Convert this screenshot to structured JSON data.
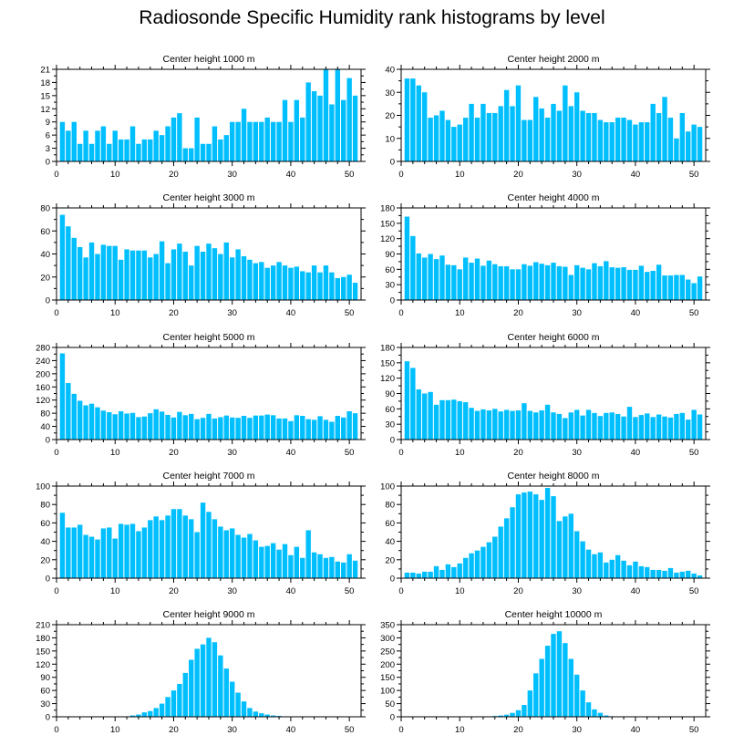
{
  "figure": {
    "title": "Radiosonde Specific Humidity rank histograms by level"
  },
  "colors": {
    "bar_fill": "#00bfff",
    "axis": "#000000",
    "background": "#ffffff"
  },
  "chart_data": [
    {
      "type": "bar",
      "title": "Center height 1000 m",
      "xlim": [
        0,
        52
      ],
      "ylim": [
        0,
        21
      ],
      "yticks": [
        0,
        3,
        6,
        9,
        12,
        15,
        18,
        21
      ],
      "xticks": [
        0,
        10,
        20,
        30,
        40,
        50
      ],
      "x": [
        1,
        2,
        3,
        4,
        5,
        6,
        7,
        8,
        9,
        10,
        11,
        12,
        13,
        14,
        15,
        16,
        17,
        18,
        19,
        20,
        21,
        22,
        23,
        24,
        25,
        26,
        27,
        28,
        29,
        30,
        31,
        32,
        33,
        34,
        35,
        36,
        37,
        38,
        39,
        40,
        41,
        42,
        43,
        44,
        45,
        46,
        47,
        48,
        49,
        50,
        51
      ],
      "values": [
        9,
        7,
        9,
        4,
        7,
        4,
        7,
        8,
        4,
        7,
        5,
        5,
        8,
        4,
        5,
        5,
        7,
        6,
        8,
        10,
        11,
        3,
        3,
        10,
        4,
        4,
        8,
        5,
        6,
        9,
        9,
        12,
        9,
        9,
        9,
        10,
        9,
        9,
        14,
        9,
        14,
        10,
        18,
        16,
        15,
        22,
        13,
        21,
        14,
        19,
        15
      ]
    },
    {
      "type": "bar",
      "title": "Center height 2000 m",
      "xlim": [
        0,
        52
      ],
      "ylim": [
        0,
        40
      ],
      "yticks": [
        0,
        10,
        20,
        30,
        40
      ],
      "xticks": [
        0,
        10,
        20,
        30,
        40,
        50
      ],
      "x": [
        1,
        2,
        3,
        4,
        5,
        6,
        7,
        8,
        9,
        10,
        11,
        12,
        13,
        14,
        15,
        16,
        17,
        18,
        19,
        20,
        21,
        22,
        23,
        24,
        25,
        26,
        27,
        28,
        29,
        30,
        31,
        32,
        33,
        34,
        35,
        36,
        37,
        38,
        39,
        40,
        41,
        42,
        43,
        44,
        45,
        46,
        47,
        48,
        49,
        50,
        51
      ],
      "values": [
        36,
        36,
        33,
        30,
        19,
        20,
        22,
        18,
        15,
        16,
        19,
        25,
        19,
        25,
        21,
        21,
        24,
        31,
        24,
        33,
        18,
        18,
        28,
        23,
        19,
        25,
        22,
        33,
        24,
        30,
        22,
        21,
        21,
        18,
        17,
        17,
        19,
        19,
        18,
        16,
        17,
        17,
        25,
        21,
        28,
        19,
        10,
        21,
        13,
        16,
        15
      ]
    },
    {
      "type": "bar",
      "title": "Center height 3000 m",
      "xlim": [
        0,
        52
      ],
      "ylim": [
        0,
        80
      ],
      "yticks": [
        0,
        20,
        40,
        60,
        80
      ],
      "xticks": [
        0,
        10,
        20,
        30,
        40,
        50
      ],
      "x": [
        1,
        2,
        3,
        4,
        5,
        6,
        7,
        8,
        9,
        10,
        11,
        12,
        13,
        14,
        15,
        16,
        17,
        18,
        19,
        20,
        21,
        22,
        23,
        24,
        25,
        26,
        27,
        28,
        29,
        30,
        31,
        32,
        33,
        34,
        35,
        36,
        37,
        38,
        39,
        40,
        41,
        42,
        43,
        44,
        45,
        46,
        47,
        48,
        49,
        50,
        51
      ],
      "values": [
        74,
        64,
        54,
        46,
        37,
        50,
        40,
        48,
        47,
        47,
        35,
        44,
        43,
        43,
        43,
        37,
        40,
        51,
        32,
        44,
        49,
        42,
        30,
        47,
        42,
        49,
        45,
        40,
        50,
        37,
        44,
        38,
        35,
        32,
        33,
        28,
        30,
        33,
        30,
        28,
        29,
        25,
        24,
        30,
        24,
        30,
        24,
        19,
        20,
        22,
        15
      ]
    },
    {
      "type": "bar",
      "title": "Center height 4000 m",
      "xlim": [
        0,
        52
      ],
      "ylim": [
        0,
        180
      ],
      "yticks": [
        0,
        30,
        60,
        90,
        120,
        150,
        180
      ],
      "xticks": [
        0,
        10,
        20,
        30,
        40,
        50
      ],
      "x": [
        1,
        2,
        3,
        4,
        5,
        6,
        7,
        8,
        9,
        10,
        11,
        12,
        13,
        14,
        15,
        16,
        17,
        18,
        19,
        20,
        21,
        22,
        23,
        24,
        25,
        26,
        27,
        28,
        29,
        30,
        31,
        32,
        33,
        34,
        35,
        36,
        37,
        38,
        39,
        40,
        41,
        42,
        43,
        44,
        45,
        46,
        47,
        48,
        49,
        50,
        51
      ],
      "values": [
        163,
        125,
        91,
        83,
        90,
        80,
        87,
        69,
        68,
        60,
        83,
        73,
        81,
        67,
        77,
        70,
        66,
        66,
        60,
        60,
        70,
        67,
        74,
        71,
        68,
        73,
        66,
        65,
        49,
        68,
        63,
        60,
        72,
        66,
        76,
        64,
        63,
        64,
        59,
        59,
        67,
        55,
        57,
        69,
        48,
        48,
        49,
        49,
        40,
        33,
        46
      ]
    },
    {
      "type": "bar",
      "title": "Center height 5000 m",
      "xlim": [
        0,
        52
      ],
      "ylim": [
        0,
        280
      ],
      "yticks": [
        0,
        40,
        80,
        120,
        160,
        200,
        240,
        280
      ],
      "xticks": [
        0,
        10,
        20,
        30,
        40,
        50
      ],
      "x": [
        1,
        2,
        3,
        4,
        5,
        6,
        7,
        8,
        9,
        10,
        11,
        12,
        13,
        14,
        15,
        16,
        17,
        18,
        19,
        20,
        21,
        22,
        23,
        24,
        25,
        26,
        27,
        28,
        29,
        30,
        31,
        32,
        33,
        34,
        35,
        36,
        37,
        38,
        39,
        40,
        41,
        42,
        43,
        44,
        45,
        46,
        47,
        48,
        49,
        50,
        51
      ],
      "values": [
        262,
        172,
        139,
        118,
        104,
        109,
        98,
        88,
        83,
        77,
        86,
        79,
        81,
        68,
        70,
        80,
        92,
        85,
        75,
        67,
        84,
        74,
        78,
        62,
        66,
        78,
        64,
        68,
        73,
        67,
        66,
        72,
        66,
        73,
        73,
        76,
        74,
        64,
        64,
        56,
        74,
        72,
        62,
        60,
        71,
        60,
        54,
        72,
        67,
        86,
        80
      ]
    },
    {
      "type": "bar",
      "title": "Center height 6000 m",
      "xlim": [
        0,
        52
      ],
      "ylim": [
        0,
        180
      ],
      "yticks": [
        0,
        30,
        60,
        90,
        120,
        150,
        180
      ],
      "xticks": [
        0,
        10,
        20,
        30,
        40,
        50
      ],
      "x": [
        1,
        2,
        3,
        4,
        5,
        6,
        7,
        8,
        9,
        10,
        11,
        12,
        13,
        14,
        15,
        16,
        17,
        18,
        19,
        20,
        21,
        22,
        23,
        24,
        25,
        26,
        27,
        28,
        29,
        30,
        31,
        32,
        33,
        34,
        35,
        36,
        37,
        38,
        39,
        40,
        41,
        42,
        43,
        44,
        45,
        46,
        47,
        48,
        49,
        50,
        51
      ],
      "values": [
        153,
        140,
        98,
        90,
        93,
        68,
        77,
        77,
        78,
        75,
        73,
        62,
        56,
        59,
        57,
        60,
        55,
        58,
        56,
        57,
        71,
        56,
        53,
        57,
        68,
        53,
        50,
        42,
        53,
        58,
        47,
        58,
        52,
        46,
        52,
        53,
        50,
        45,
        64,
        44,
        48,
        51,
        44,
        49,
        45,
        43,
        50,
        52,
        39,
        58,
        49
      ]
    },
    {
      "type": "bar",
      "title": "Center height 7000 m",
      "xlim": [
        0,
        52
      ],
      "ylim": [
        0,
        100
      ],
      "yticks": [
        0,
        20,
        40,
        60,
        80,
        100
      ],
      "xticks": [
        0,
        10,
        20,
        30,
        40,
        50
      ],
      "x": [
        1,
        2,
        3,
        4,
        5,
        6,
        7,
        8,
        9,
        10,
        11,
        12,
        13,
        14,
        15,
        16,
        17,
        18,
        19,
        20,
        21,
        22,
        23,
        24,
        25,
        26,
        27,
        28,
        29,
        30,
        31,
        32,
        33,
        34,
        35,
        36,
        37,
        38,
        39,
        40,
        41,
        42,
        43,
        44,
        45,
        46,
        47,
        48,
        49,
        50,
        51
      ],
      "values": [
        71,
        55,
        55,
        58,
        47,
        45,
        42,
        54,
        55,
        43,
        59,
        58,
        59,
        51,
        55,
        63,
        67,
        63,
        68,
        75,
        75,
        68,
        64,
        50,
        82,
        72,
        64,
        56,
        52,
        54,
        47,
        44,
        48,
        41,
        34,
        35,
        38,
        31,
        37,
        25,
        34,
        22,
        52,
        28,
        26,
        22,
        23,
        18,
        17,
        26,
        19
      ]
    },
    {
      "type": "bar",
      "title": "Center height 8000 m",
      "xlim": [
        0,
        52
      ],
      "ylim": [
        0,
        100
      ],
      "yticks": [
        0,
        20,
        40,
        60,
        80,
        100
      ],
      "xticks": [
        0,
        10,
        20,
        30,
        40,
        50
      ],
      "x": [
        1,
        2,
        3,
        4,
        5,
        6,
        7,
        8,
        9,
        10,
        11,
        12,
        13,
        14,
        15,
        16,
        17,
        18,
        19,
        20,
        21,
        22,
        23,
        24,
        25,
        26,
        27,
        28,
        29,
        30,
        31,
        32,
        33,
        34,
        35,
        36,
        37,
        38,
        39,
        40,
        41,
        42,
        43,
        44,
        45,
        46,
        47,
        48,
        49,
        50,
        51
      ],
      "values": [
        6,
        6,
        5,
        7,
        7,
        13,
        9,
        15,
        12,
        16,
        22,
        27,
        30,
        34,
        39,
        45,
        56,
        65,
        77,
        91,
        93,
        94,
        91,
        85,
        98,
        89,
        62,
        67,
        70,
        51,
        40,
        31,
        26,
        28,
        17,
        20,
        25,
        19,
        14,
        18,
        13,
        12,
        9,
        9,
        8,
        11,
        6,
        7,
        8,
        5,
        3
      ]
    },
    {
      "type": "bar",
      "title": "Center height 9000 m",
      "xlim": [
        0,
        52
      ],
      "ylim": [
        0,
        210
      ],
      "yticks": [
        0,
        30,
        60,
        90,
        120,
        150,
        180,
        210
      ],
      "xticks": [
        0,
        10,
        20,
        30,
        40,
        50
      ],
      "x": [
        1,
        2,
        3,
        4,
        5,
        6,
        7,
        8,
        9,
        10,
        11,
        12,
        13,
        14,
        15,
        16,
        17,
        18,
        19,
        20,
        21,
        22,
        23,
        24,
        25,
        26,
        27,
        28,
        29,
        30,
        31,
        32,
        33,
        34,
        35,
        36,
        37,
        38,
        39,
        40,
        41,
        42,
        43,
        44,
        45,
        46,
        47,
        48,
        49,
        50,
        51
      ],
      "values": [
        0,
        0,
        0,
        0,
        0,
        0,
        0,
        0,
        0,
        1,
        1,
        1,
        3,
        5,
        10,
        13,
        20,
        30,
        45,
        60,
        75,
        100,
        130,
        155,
        165,
        180,
        170,
        140,
        110,
        80,
        55,
        35,
        20,
        12,
        8,
        5,
        3,
        2,
        1,
        1,
        1,
        1,
        1,
        1,
        1,
        0,
        0,
        1,
        0,
        0,
        0
      ]
    },
    {
      "type": "bar",
      "title": "Center height 10000 m",
      "xlim": [
        0,
        52
      ],
      "ylim": [
        0,
        350
      ],
      "yticks": [
        0,
        50,
        100,
        150,
        200,
        250,
        300,
        350
      ],
      "xticks": [
        0,
        10,
        20,
        30,
        40,
        50
      ],
      "x": [
        1,
        2,
        3,
        4,
        5,
        6,
        7,
        8,
        9,
        10,
        11,
        12,
        13,
        14,
        15,
        16,
        17,
        18,
        19,
        20,
        21,
        22,
        23,
        24,
        25,
        26,
        27,
        28,
        29,
        30,
        31,
        32,
        33,
        34,
        35,
        36,
        37,
        38,
        39,
        40,
        41,
        42,
        43,
        44,
        45,
        46,
        47,
        48,
        49,
        50,
        51
      ],
      "values": [
        0,
        0,
        0,
        0,
        0,
        0,
        0,
        0,
        0,
        0,
        0,
        0,
        0,
        0,
        1,
        3,
        5,
        8,
        15,
        25,
        45,
        100,
        165,
        220,
        270,
        315,
        325,
        280,
        220,
        160,
        100,
        55,
        28,
        15,
        5,
        2,
        1,
        0,
        0,
        0,
        0,
        0,
        0,
        0,
        0,
        0,
        0,
        0,
        0,
        0,
        0
      ]
    }
  ]
}
